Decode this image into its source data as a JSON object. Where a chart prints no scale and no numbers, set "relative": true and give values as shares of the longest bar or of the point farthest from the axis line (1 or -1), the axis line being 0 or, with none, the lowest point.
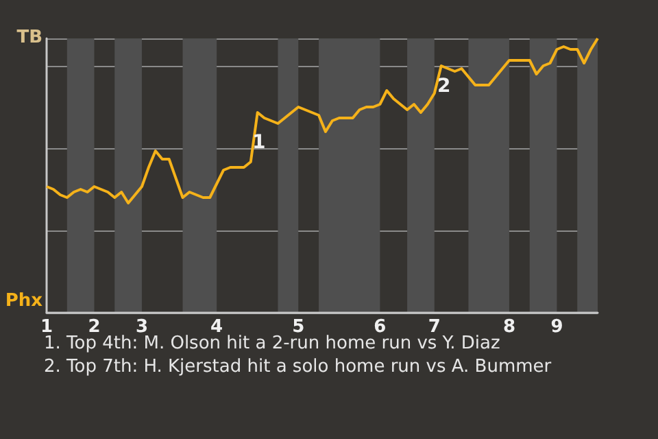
{
  "chart_data": {
    "type": "line",
    "relative": true,
    "categories": [
      "1",
      null,
      null,
      null,
      null,
      null,
      null,
      "2",
      null,
      null,
      null,
      null,
      null,
      null,
      "3",
      null,
      null,
      null,
      null,
      null,
      null,
      null,
      null,
      null,
      null,
      "4",
      null,
      null,
      null,
      null,
      null,
      null,
      null,
      null,
      null,
      null,
      null,
      "5",
      null,
      null,
      null,
      null,
      null,
      null,
      null,
      null,
      null,
      null,
      null,
      "6",
      null,
      null,
      null,
      null,
      null,
      null,
      null,
      "7",
      null,
      null,
      null,
      null,
      null,
      null,
      null,
      null,
      null,
      null,
      "8",
      null,
      null,
      null,
      null,
      null,
      null,
      "9",
      null,
      null,
      null,
      null,
      null,
      null
    ],
    "series": [
      {
        "color": "#f5b21a",
        "values": [
          0.46,
          0.45,
          0.43,
          0.42,
          0.44,
          0.45,
          0.44,
          0.46,
          0.45,
          0.44,
          0.42,
          0.44,
          0.4,
          0.43,
          0.46,
          0.53,
          0.59,
          0.56,
          0.56,
          0.49,
          0.42,
          0.44,
          0.43,
          0.42,
          0.42,
          0.47,
          0.52,
          0.53,
          0.53,
          0.53,
          0.55,
          0.73,
          0.71,
          0.7,
          0.69,
          0.71,
          0.73,
          0.75,
          0.74,
          0.73,
          0.72,
          0.66,
          0.7,
          0.71,
          0.71,
          0.71,
          0.74,
          0.75,
          0.75,
          0.76,
          0.81,
          0.78,
          0.76,
          0.74,
          0.76,
          0.73,
          0.76,
          0.8,
          0.9,
          0.89,
          0.88,
          0.89,
          0.86,
          0.83,
          0.83,
          0.83,
          0.86,
          0.89,
          0.92,
          0.92,
          0.92,
          0.92,
          0.87,
          0.9,
          0.91,
          0.96,
          0.97,
          0.96,
          0.96,
          0.91,
          0.96,
          1
        ]
      }
    ],
    "grid": "y",
    "marker": "none",
    "annotations": [
      "TB",
      "Phx",
      "1",
      "2",
      "1. Top 4th: M. Olson hit a 2-run home run vs Y. Diaz",
      "2. Top 7th: H. Kjerstad hit a solo home run vs A. Bummer"
    ]
  }
}
